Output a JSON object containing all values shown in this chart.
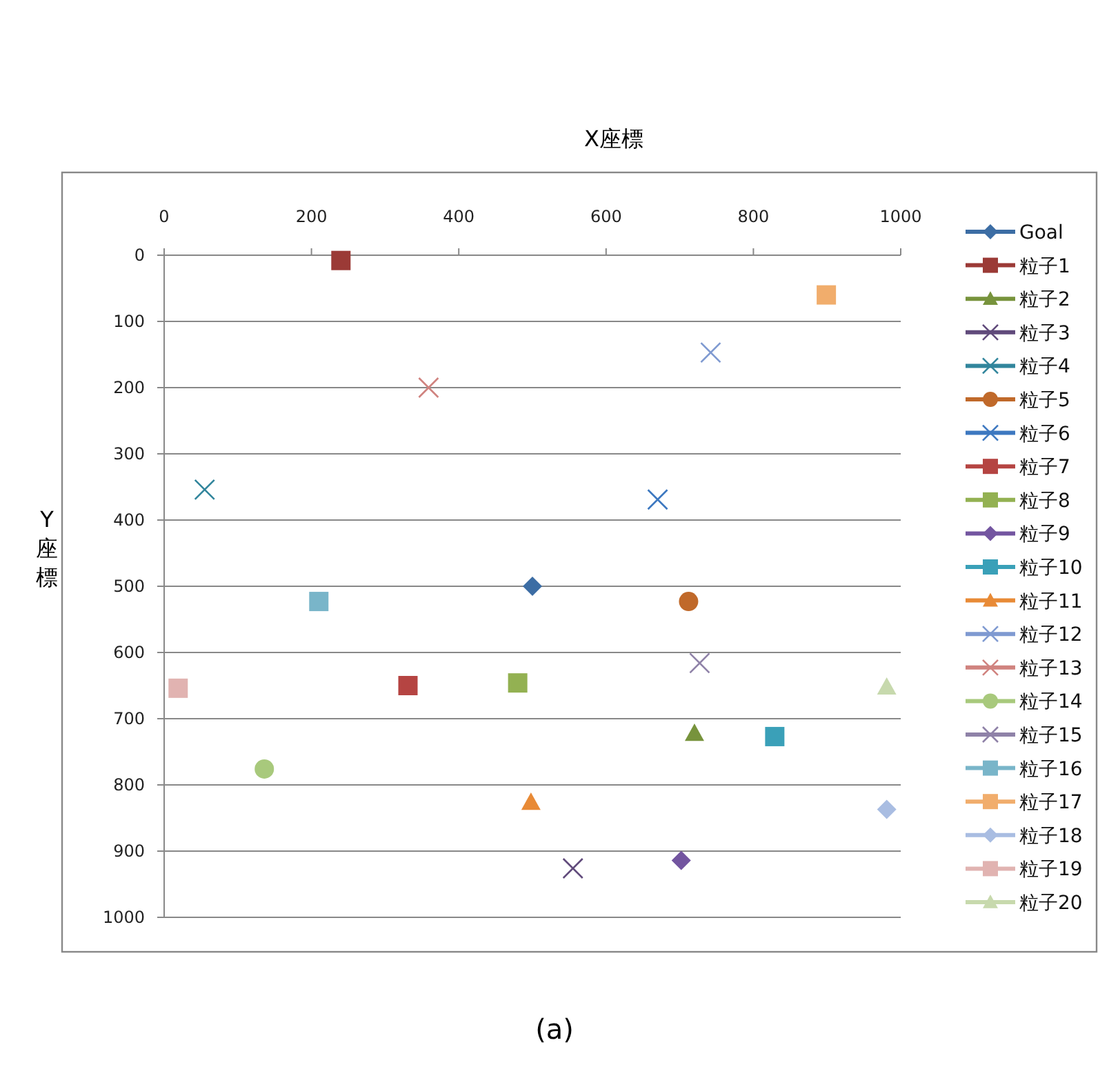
{
  "chart_data": {
    "type": "scatter",
    "xlabel": "X座標",
    "ylabel": "Y座標",
    "annotations": [
      "(a)"
    ],
    "xlim": [
      0,
      1000
    ],
    "xticks": [
      0,
      200,
      400,
      600,
      800,
      1000
    ],
    "ylim": [
      1000,
      0
    ],
    "yticks": [
      0,
      100,
      200,
      300,
      400,
      500,
      600,
      700,
      800,
      900,
      1000
    ],
    "grid": "y",
    "legend": "right",
    "series": [
      {
        "name": "Goal",
        "color": "#3c6da4",
        "marker": "diamond",
        "x": [
          500
        ],
        "values": [
          500
        ]
      },
      {
        "name": "粒子1",
        "color": "#9b3a36",
        "marker": "square",
        "x": [
          240
        ],
        "values": [
          8
        ]
      },
      {
        "name": "粒子2",
        "color": "#77933c",
        "marker": "triangle",
        "x": [
          720
        ],
        "values": [
          722
        ]
      },
      {
        "name": "粒子3",
        "color": "#604a7b",
        "marker": "cross",
        "x": [
          555
        ],
        "values": [
          926
        ]
      },
      {
        "name": "粒子4",
        "color": "#31859c",
        "marker": "cross",
        "x": [
          55
        ],
        "values": [
          354
        ]
      },
      {
        "name": "粒子5",
        "color": "#c0692a",
        "marker": "circle",
        "x": [
          712
        ],
        "values": [
          523
        ]
      },
      {
        "name": "粒子6",
        "color": "#3d78c0",
        "marker": "cross",
        "x": [
          670
        ],
        "values": [
          369
        ]
      },
      {
        "name": "粒子7",
        "color": "#b54442",
        "marker": "square",
        "x": [
          331
        ],
        "values": [
          650
        ]
      },
      {
        "name": "粒子8",
        "color": "#93b152",
        "marker": "square",
        "x": [
          480
        ],
        "values": [
          646
        ]
      },
      {
        "name": "粒子9",
        "color": "#7355a0",
        "marker": "diamond",
        "x": [
          702
        ],
        "values": [
          914
        ]
      },
      {
        "name": "粒子10",
        "color": "#3aa0b8",
        "marker": "square",
        "x": [
          829
        ],
        "values": [
          727
        ]
      },
      {
        "name": "粒子11",
        "color": "#e88a36",
        "marker": "triangle",
        "x": [
          498
        ],
        "values": [
          826
        ]
      },
      {
        "name": "粒子12",
        "color": "#7f9ad1",
        "marker": "cross",
        "x": [
          742
        ],
        "values": [
          147
        ]
      },
      {
        "name": "粒子13",
        "color": "#d0837f",
        "marker": "cross",
        "x": [
          359
        ],
        "values": [
          200
        ]
      },
      {
        "name": "粒子14",
        "color": "#a8c97c",
        "marker": "circle",
        "x": [
          136
        ],
        "values": [
          776
        ]
      },
      {
        "name": "粒子15",
        "color": "#8f82a8",
        "marker": "cross",
        "x": [
          727
        ],
        "values": [
          616
        ]
      },
      {
        "name": "粒子16",
        "color": "#79b5c9",
        "marker": "square",
        "x": [
          210
        ],
        "values": [
          523
        ]
      },
      {
        "name": "粒子17",
        "color": "#f1ad6c",
        "marker": "square",
        "x": [
          899
        ],
        "values": [
          60
        ]
      },
      {
        "name": "粒子18",
        "color": "#a9bde2",
        "marker": "diamond",
        "x": [
          981
        ],
        "values": [
          837
        ]
      },
      {
        "name": "粒子19",
        "color": "#e1b3b1",
        "marker": "square",
        "x": [
          19
        ],
        "values": [
          654
        ]
      },
      {
        "name": "粒子20",
        "color": "#c7d9ad",
        "marker": "triangle",
        "x": [
          981
        ],
        "values": [
          652
        ]
      }
    ]
  }
}
